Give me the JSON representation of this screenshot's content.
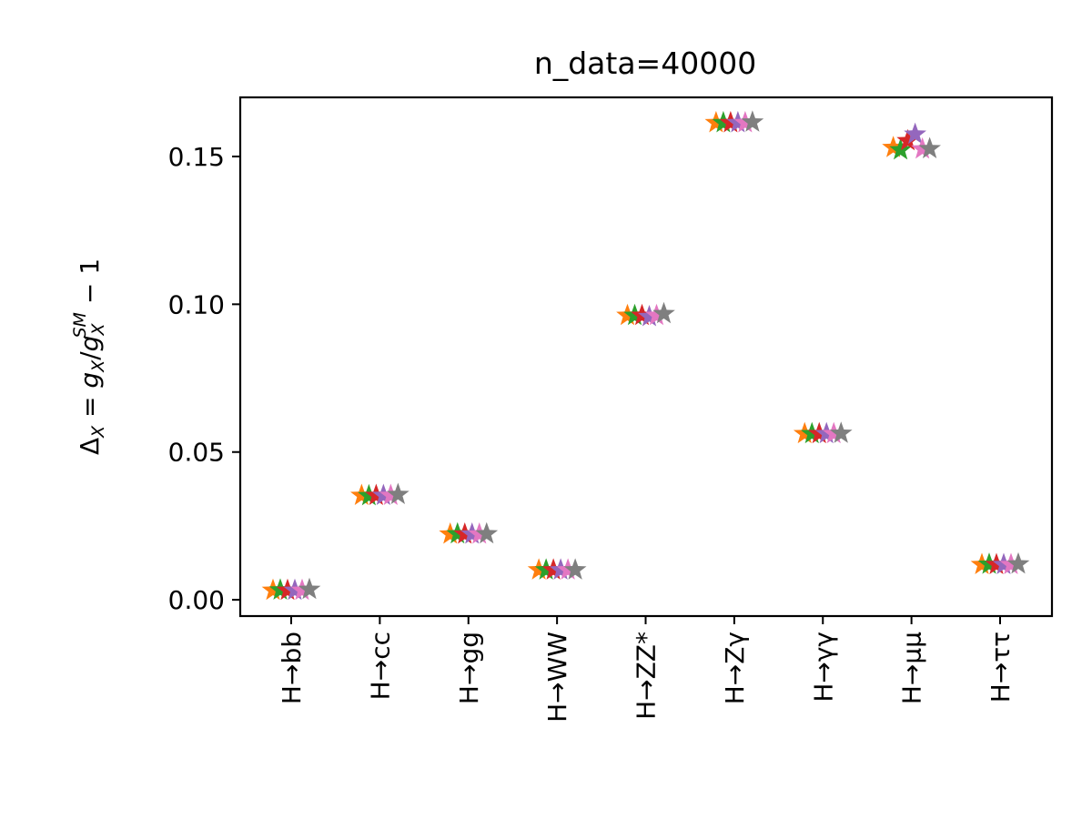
{
  "chart_data": {
    "type": "scatter",
    "title": "n_data=40000",
    "xlabel": "",
    "ylabel": {
      "base": "Δ",
      "base_sub": "X",
      "eq": " = ",
      "g1": "g",
      "g1_sub": "X",
      "slash": "/",
      "g2": "g",
      "g2_sub": "X",
      "g2_sup": "SM",
      "tail": " − 1"
    },
    "marker": "star",
    "categories": [
      "H→bb",
      "H→cc",
      "H→gg",
      "H→WW",
      "H→ZZ*",
      "H→Zγ",
      "H→γγ",
      "H→μμ",
      "H→ττ"
    ],
    "ylim": [
      -0.0055,
      0.17
    ],
    "yticks": [
      0.0,
      0.05,
      0.1,
      0.15
    ],
    "ytick_labels": [
      "0.00",
      "0.05",
      "0.10",
      "0.15"
    ],
    "grid": false,
    "legend": "none",
    "series": [
      {
        "color": "#ff7f0e",
        "values": [
          0.0032,
          0.0353,
          0.0222,
          0.0101,
          0.0962,
          0.1614,
          0.0562,
          0.153,
          0.0119
        ]
      },
      {
        "color": "#2ca02c",
        "values": [
          0.0033,
          0.0352,
          0.0223,
          0.0101,
          0.0962,
          0.1614,
          0.0562,
          0.1522,
          0.012
        ]
      },
      {
        "color": "#d62728",
        "values": [
          0.0032,
          0.0353,
          0.0222,
          0.0101,
          0.0962,
          0.1614,
          0.0562,
          0.1553,
          0.0119
        ]
      },
      {
        "color": "#9467bd",
        "values": [
          0.0032,
          0.0353,
          0.0222,
          0.0101,
          0.0958,
          0.1614,
          0.0562,
          0.1575,
          0.0119
        ]
      },
      {
        "color": "#e377c2",
        "values": [
          0.0032,
          0.0353,
          0.0222,
          0.0101,
          0.0962,
          0.1614,
          0.0562,
          0.1525,
          0.0119
        ]
      },
      {
        "color": "#7f7f7f",
        "values": [
          0.0035,
          0.0356,
          0.0223,
          0.0101,
          0.0968,
          0.1616,
          0.0563,
          0.1526,
          0.0121
        ]
      }
    ]
  }
}
